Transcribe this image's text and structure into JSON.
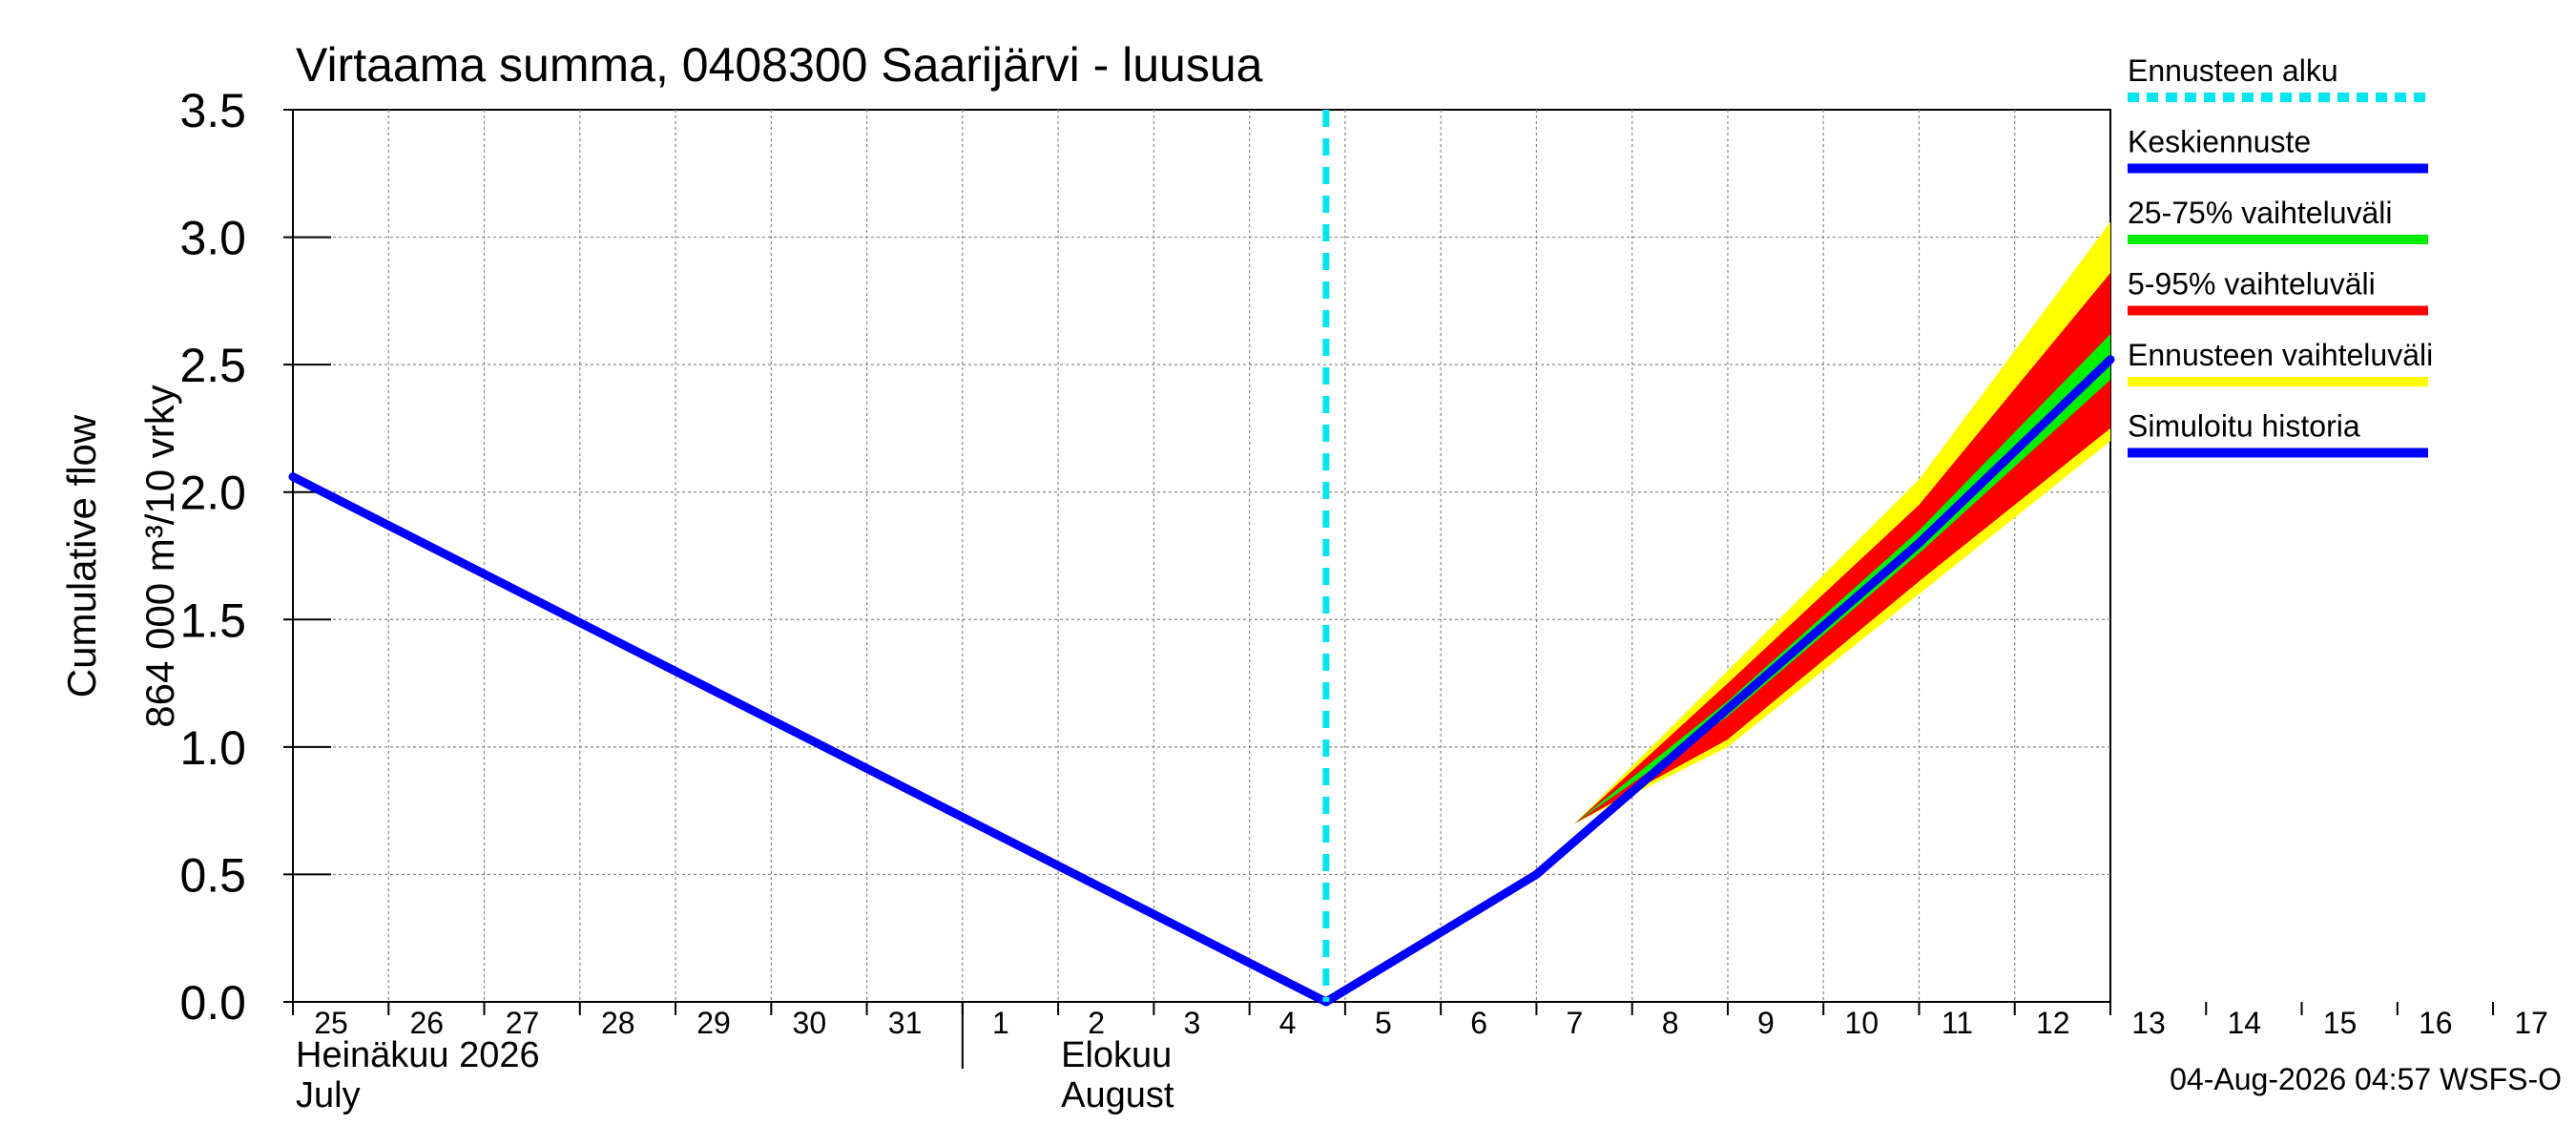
{
  "chart_data": {
    "type": "area",
    "title": "Virtaama summa, 0408300 Saarijärvi - luusua",
    "ylabel_lines": [
      "Cumulative flow",
      "864 000 m³/10 vrky"
    ],
    "ylim": [
      0,
      3.5
    ],
    "y_ticks": [
      "0.0",
      "0.5",
      "1.0",
      "1.5",
      "2.0",
      "2.5",
      "3.0",
      "3.5"
    ],
    "x_range": [
      25,
      44
    ],
    "x_tick_labels": [
      "25",
      "26",
      "27",
      "28",
      "29",
      "30",
      "31",
      "1",
      "2",
      "3",
      "4",
      "5",
      "6",
      "7",
      "8",
      "9",
      "10",
      "11",
      "12",
      "13",
      "14",
      "15",
      "16",
      "17"
    ],
    "month_labels": [
      {
        "fi": "Heinäkuu  2026",
        "en": "July",
        "day": 25
      },
      {
        "fi": "Elokuu",
        "en": "August",
        "day": 33
      }
    ],
    "month_boundary_day": 32,
    "forecast_start_day": 35.8,
    "series": [
      {
        "name": "Simuloitu historia",
        "x": [
          25,
          35.8
        ],
        "y": [
          2.06,
          0.0
        ]
      },
      {
        "name": "Keskiennuste",
        "x": [
          35.8,
          38,
          40,
          42,
          44
        ],
        "y": [
          0.0,
          0.5,
          1.15,
          1.8,
          2.52
        ]
      }
    ],
    "bands": [
      {
        "name": "Ennusteen vaihteluväli",
        "x": [
          38.4,
          40,
          42,
          44
        ],
        "upper": [
          0.7,
          1.3,
          2.05,
          3.06
        ],
        "lower": [
          0.7,
          1.0,
          1.6,
          2.2
        ]
      },
      {
        "name": "5-95% vaihteluväli",
        "x": [
          38.4,
          40,
          42,
          44
        ],
        "upper": [
          0.7,
          1.25,
          1.95,
          2.86
        ],
        "lower": [
          0.7,
          1.03,
          1.65,
          2.25
        ]
      },
      {
        "name": "25-75% vaihteluväli",
        "x": [
          38.4,
          40,
          42,
          44
        ],
        "upper": [
          0.7,
          1.18,
          1.85,
          2.62
        ],
        "lower": [
          0.7,
          1.12,
          1.76,
          2.44
        ]
      }
    ],
    "legend_placement": "right",
    "grid": true
  },
  "legend": [
    {
      "label": "Ennusteen alku",
      "color": "#00e5ee",
      "style": "dashed"
    },
    {
      "label": "Keskiennuste",
      "color": "#0000ff",
      "style": "solid"
    },
    {
      "label": "25-75% vaihteluväli",
      "color": "#00ee00",
      "style": "solid"
    },
    {
      "label": "5-95% vaihteluväli",
      "color": "#ff0000",
      "style": "solid"
    },
    {
      "label": "Ennusteen vaihteluväli",
      "color": "#ffff00",
      "style": "solid"
    },
    {
      "label": "Simuloitu historia",
      "color": "#0000ff",
      "style": "solid"
    }
  ],
  "colors": {
    "history": "#0000ff",
    "median": "#0000ff",
    "iqr": "#00ee00",
    "p5_95": "#ff0000",
    "range": "#ffff00",
    "forecast_start": "#00e5ee",
    "grid": "#888888"
  },
  "footer": "04-Aug-2026 04:57 WSFS-O"
}
